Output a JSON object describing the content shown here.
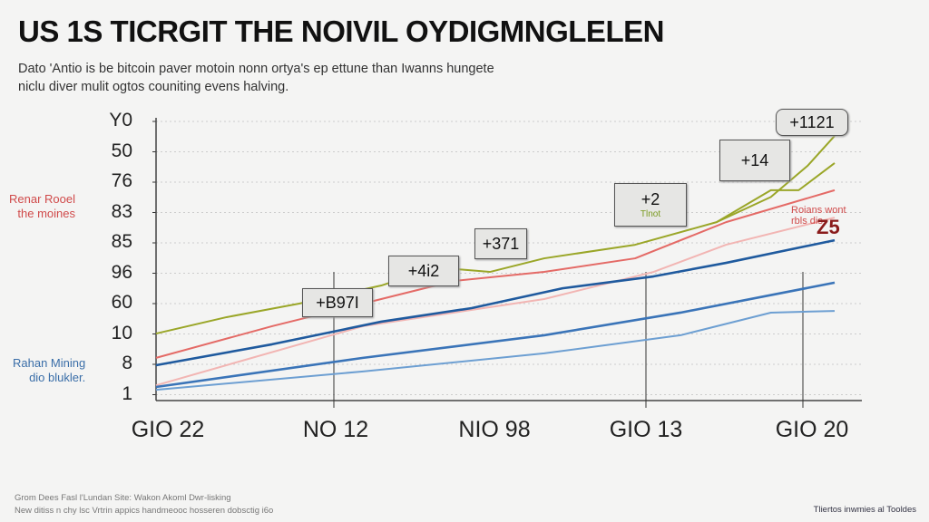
{
  "chart_data": {
    "type": "line",
    "title": "US 1S TICRGIT THE NOIVIL OYDIGMNGLELEN",
    "subtitle": [
      "Dato 'Antio is be bitcoin paver motoin nonn ortya's ep ettune than Iwanns hungete",
      "niclu diver mulit ogtos couniting evens halving."
    ],
    "y_tick_labels": [
      "Y0",
      "50",
      "76",
      "83",
      "85",
      "96",
      "60",
      "10",
      "8",
      "1"
    ],
    "x_tick_labels": [
      "GIO 22",
      "NO 12",
      "NIO 98",
      "GIO 13",
      "GIO 20"
    ],
    "xlim": [
      0,
      100
    ],
    "ylim": [
      0,
      100
    ],
    "grid": true,
    "series": [
      {
        "name": "olive",
        "color": "#9aa628",
        "x": [
          0,
          10.4,
          21.1,
          33.2,
          41.2,
          49.2,
          57.2,
          70.6,
          82.6,
          90.6,
          94.7,
          100
        ],
        "y": [
          23.7,
          29.5,
          34.3,
          40.7,
          47.1,
          45.5,
          50.3,
          55.1,
          63.1,
          74.4,
          74.4,
          84.0
        ]
      },
      {
        "name": "olive-peak",
        "color": "#9aa628",
        "x": [
          82.6,
          90.6,
          96,
          100
        ],
        "y": [
          63.1,
          72,
          83,
          93.6
        ]
      },
      {
        "name": "red",
        "color": "#e46a66",
        "x": [
          0,
          17.1,
          30.5,
          43.9,
          57.2,
          70.6,
          84,
          100
        ],
        "y": [
          15.1,
          26.3,
          34.3,
          42.3,
          45.5,
          50.3,
          63.1,
          74.4
        ]
      },
      {
        "name": "pink",
        "color": "#f2b5b3",
        "x": [
          0,
          30.5,
          57.2,
          73.3,
          84,
          100
        ],
        "y": [
          5.4,
          26.3,
          35.9,
          45.5,
          55.1,
          64.7
        ]
      },
      {
        "name": "dark-blue",
        "color": "#1f5a9e",
        "x": [
          0,
          17.1,
          33.2,
          46.5,
          59.9,
          73.3,
          84,
          100
        ],
        "y": [
          12.5,
          19.9,
          27.9,
          32.7,
          39.7,
          43.9,
          48.7,
          56.7
        ]
      },
      {
        "name": "blue",
        "color": "#3a74b8",
        "x": [
          0,
          30.5,
          57.2,
          77.3,
          100
        ],
        "y": [
          4.8,
          15.1,
          23.1,
          31.1,
          41.7
        ]
      },
      {
        "name": "light-blue",
        "color": "#6d9fd2",
        "x": [
          0,
          30.5,
          57.2,
          77.3,
          90.6,
          100
        ],
        "y": [
          3.8,
          10.3,
          16.7,
          23.1,
          31.1,
          31.7
        ]
      }
    ],
    "annotations": [
      {
        "label": "+1121",
        "extra": ""
      },
      {
        "label": "+14",
        "extra": ""
      },
      {
        "label": "+2",
        "extra": "Tlnot"
      },
      {
        "label": "+371",
        "extra": ""
      },
      {
        "label": "+4i2",
        "extra": ""
      },
      {
        "label": "+B97I",
        "extra": ""
      }
    ],
    "side_labels": {
      "red": [
        "Renar Rooel",
        "the moines"
      ],
      "blue": [
        "Rahan Mining",
        "dio blukler."
      ],
      "right_red": [
        "Roians wont",
        "rbls dis"
      ],
      "right_value": "Z5"
    }
  },
  "footer": {
    "left": [
      "Grom Dees Fasl l'Lundan Site: Wakon Akoml Dwr-lisking",
      "New ditiss n chy lsc Vrtrin appics handmeooc hosseren dobsctig i6o"
    ],
    "right": "Tliertos inwmies al Tooldes"
  }
}
